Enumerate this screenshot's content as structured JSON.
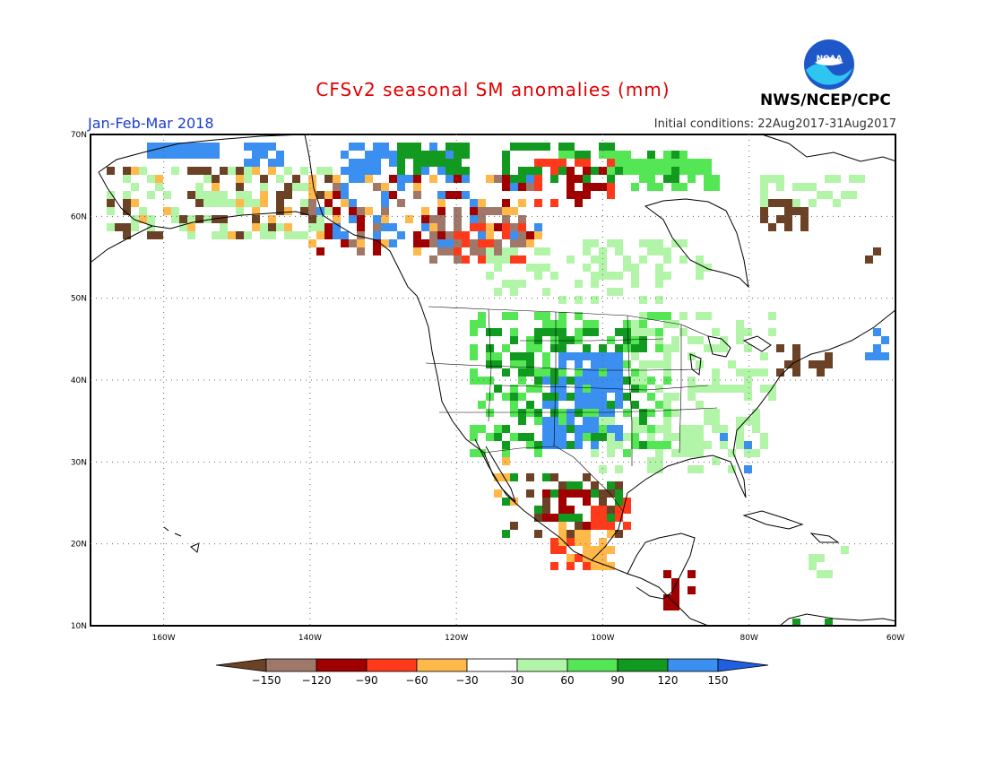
{
  "header": {
    "title": "CFSv2 seasonal SM anomalies (mm)",
    "season": "Jan-Feb-Mar 2018",
    "initial_conditions": "Initial conditions: 22Aug2017-31Aug2017",
    "agency": "NWS/NCEP/CPC",
    "logo_text": "NOAA"
  },
  "map": {
    "lat_labels": [
      "70N",
      "60N",
      "50N",
      "40N",
      "30N",
      "20N",
      "10N"
    ],
    "lon_labels": [
      "160W",
      "140W",
      "120W",
      "100W",
      "80W",
      "60W"
    ],
    "lat_range": [
      10,
      70
    ],
    "lon_range": [
      -170,
      -60
    ]
  },
  "legend": {
    "labels": [
      "-150",
      "-120",
      "-90",
      "-60",
      "-30",
      "30",
      "60",
      "90",
      "120",
      "150"
    ],
    "colors": [
      "#6b4226",
      "#a0786a",
      "#a00000",
      "#ff3a1a",
      "#ffb84a",
      "#ffffff",
      "#b3f5a8",
      "#55e655",
      "#119a1f",
      "#3a8ff0",
      "#1e60e0"
    ]
  }
}
